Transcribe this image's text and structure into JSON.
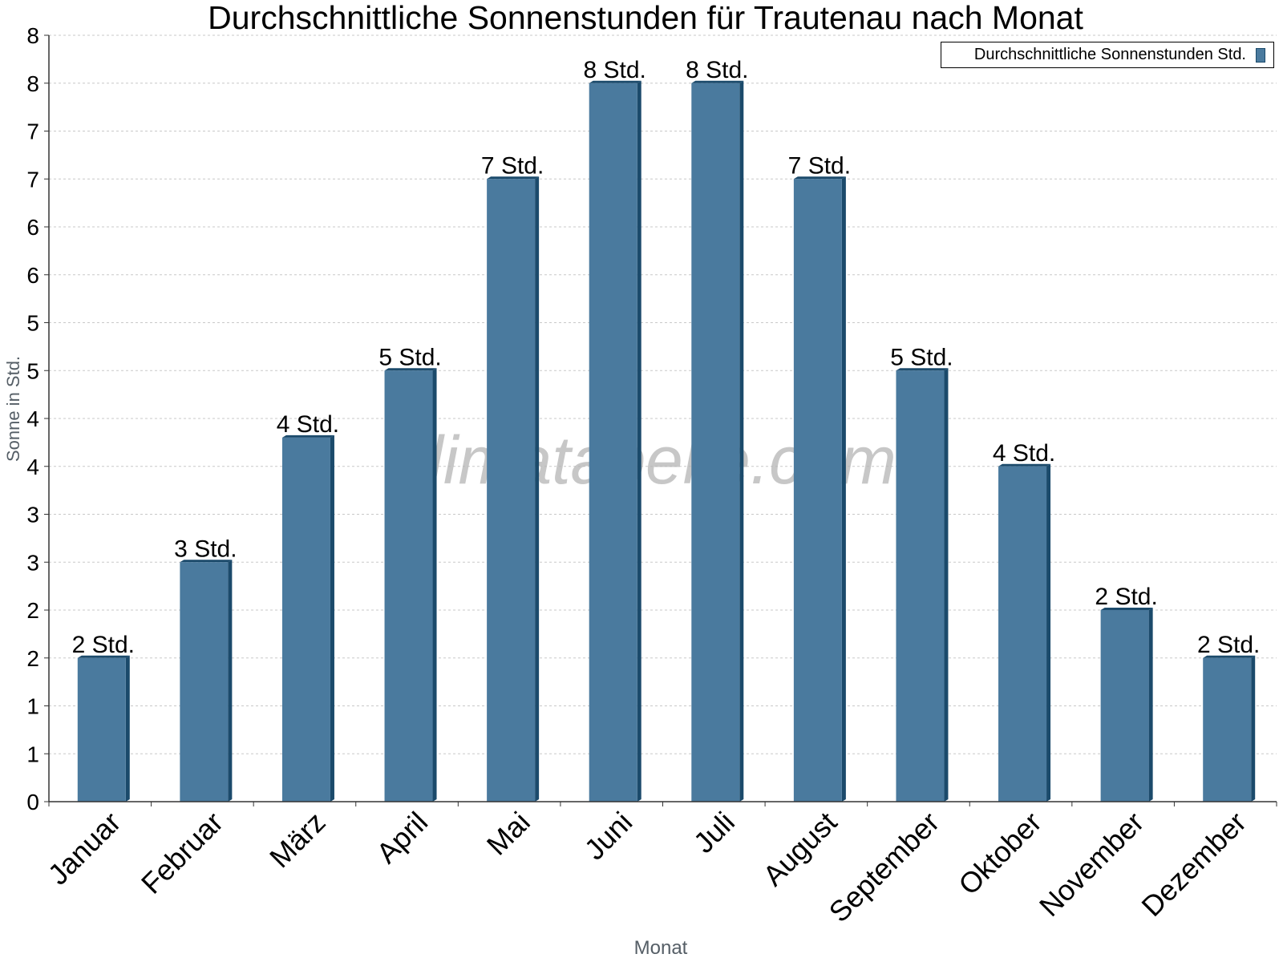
{
  "chart_data": {
    "type": "bar",
    "title": "Durchschnittliche Sonnenstunden für Trautenau nach Monat",
    "xlabel": "Monat",
    "ylabel": "Sonne in Std.",
    "watermark": "klimatabelle.com",
    "categories": [
      "Januar",
      "Februar",
      "März",
      "April",
      "Mai",
      "Juni",
      "Juli",
      "August",
      "September",
      "Oktober",
      "November",
      "Dezember"
    ],
    "series": [
      {
        "name": "Durchschnittliche Sonnenstunden Std.",
        "values": [
          1.5,
          2.5,
          3.8,
          4.5,
          6.5,
          7.5,
          7.5,
          6.5,
          4.5,
          3.5,
          2.0,
          1.5
        ],
        "data_labels": [
          "2 Std.",
          "3 Std.",
          "4 Std.",
          "5 Std.",
          "7 Std.",
          "8 Std.",
          "8 Std.",
          "7 Std.",
          "5 Std.",
          "4 Std.",
          "2 Std.",
          "2 Std."
        ]
      }
    ],
    "ylim": [
      0,
      8
    ],
    "yticks": [
      0,
      0.5,
      1,
      1.5,
      2,
      2.5,
      3,
      3.5,
      4,
      4.5,
      5,
      5.5,
      6,
      6.5,
      7,
      7.5,
      8
    ],
    "ytick_labels": [
      "0",
      "1",
      "1",
      "2",
      "2",
      "3",
      "3",
      "4",
      "4",
      "5",
      "5",
      "6",
      "6",
      "7",
      "7",
      "8",
      "8"
    ],
    "grid": true,
    "legend": "top-right",
    "colors": {
      "bar": "#4a7a9e",
      "bar_edge": "#1b4a6b",
      "grid": "#c8c8c8",
      "axis_title": "#555e66"
    }
  }
}
